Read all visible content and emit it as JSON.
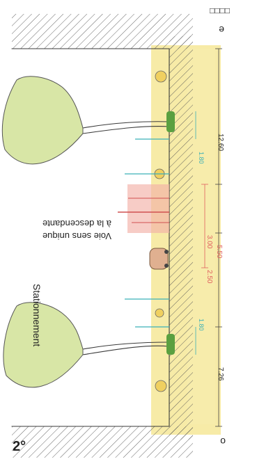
{
  "figure": {
    "label": "2°",
    "top_marks": "□□□□",
    "edge_left": "o",
    "edge_right": "e"
  },
  "annotations": {
    "parking": "Stationnement",
    "lane_line1": "Voie sens unique",
    "lane_line2": "à la descendante"
  },
  "dimensions": {
    "total_left": "7.26",
    "total_right": "12.60",
    "parking_width": "2.50",
    "lane_width": "3.00",
    "lane_zone": "5.50",
    "sidewalk_left": "1.80",
    "sidewalk_right": "1.80"
  },
  "colors": {
    "ink": "#3a3a3a",
    "tree": "#c8d98a",
    "grass": "#4f9e3a",
    "ground": "#f2e27a",
    "red_dim": "#e06060",
    "teal_dim": "#3ab0b8",
    "car": "#e8a0a0",
    "hatch": "#555555"
  }
}
